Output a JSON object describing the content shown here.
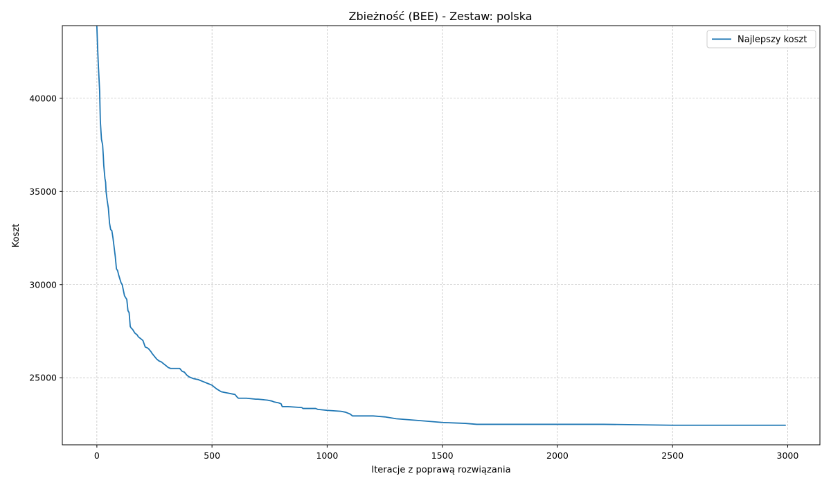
{
  "chart_data": {
    "type": "line",
    "title": "Zbieżność (BEE) - Zestaw: polska",
    "xlabel": "Iteracje z poprawą rozwiązania",
    "ylabel": "Koszt",
    "xlim": [
      -150,
      3140
    ],
    "ylim": [
      21400,
      43900
    ],
    "xticks": [
      0,
      500,
      1000,
      1500,
      2000,
      2500,
      3000
    ],
    "yticks": [
      25000,
      30000,
      35000,
      40000
    ],
    "grid": true,
    "legend_position": "upper right",
    "series": [
      {
        "name": "Najlepszy koszt",
        "color": "#1f77b4",
        "x": [
          0,
          3,
          6,
          8,
          12,
          15,
          18,
          20,
          25,
          28,
          30,
          35,
          38,
          40,
          45,
          50,
          55,
          60,
          65,
          70,
          75,
          80,
          85,
          90,
          95,
          100,
          105,
          110,
          115,
          120,
          125,
          130,
          135,
          140,
          145,
          150,
          155,
          160,
          165,
          170,
          175,
          180,
          185,
          190,
          195,
          200,
          210,
          220,
          225,
          235,
          240,
          250,
          260,
          270,
          280,
          290,
          300,
          310,
          320,
          330,
          340,
          350,
          360,
          370,
          380,
          390,
          395,
          400,
          420,
          440,
          460,
          480,
          500,
          510,
          520,
          540,
          560,
          580,
          600,
          610,
          615,
          650,
          690,
          700,
          740,
          760,
          770,
          790,
          800,
          805,
          830,
          890,
          895,
          950,
          960,
          1000,
          1060,
          1080,
          1100,
          1110,
          1200,
          1250,
          1300,
          1400,
          1500,
          1600,
          1650,
          1700,
          1800,
          2000,
          2200,
          2500,
          2800,
          2990
        ],
        "y": [
          43850,
          42800,
          41900,
          41400,
          40400,
          38800,
          38200,
          37800,
          37500,
          36900,
          36400,
          35700,
          35500,
          35000,
          34500,
          34100,
          33300,
          32950,
          32900,
          32500,
          32000,
          31500,
          30850,
          30750,
          30500,
          30300,
          30100,
          30000,
          29700,
          29400,
          29300,
          29200,
          28600,
          28500,
          27750,
          27650,
          27600,
          27500,
          27400,
          27350,
          27300,
          27200,
          27150,
          27100,
          27050,
          27000,
          26650,
          26600,
          26550,
          26400,
          26300,
          26150,
          26000,
          25900,
          25850,
          25750,
          25650,
          25550,
          25500,
          25500,
          25500,
          25500,
          25500,
          25350,
          25300,
          25150,
          25100,
          25050,
          24950,
          24900,
          24800,
          24700,
          24600,
          24500,
          24400,
          24250,
          24200,
          24150,
          24100,
          23950,
          23900,
          23900,
          23850,
          23850,
          23800,
          23750,
          23700,
          23650,
          23600,
          23450,
          23450,
          23400,
          23350,
          23350,
          23300,
          23250,
          23200,
          23150,
          23050,
          22950,
          22950,
          22900,
          22800,
          22700,
          22600,
          22550,
          22500,
          22500,
          22500,
          22500,
          22500,
          22450,
          22450,
          22450
        ]
      }
    ]
  }
}
